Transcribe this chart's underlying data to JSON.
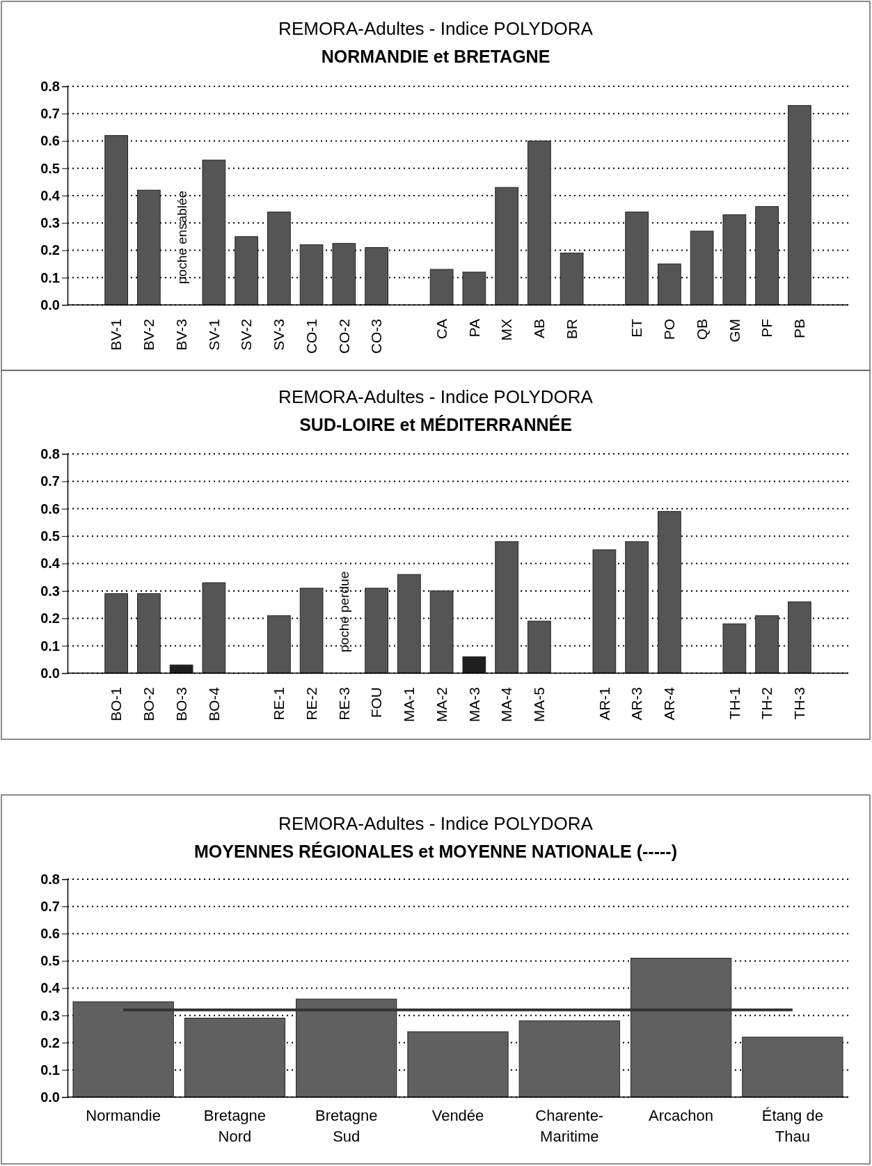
{
  "chart_data": [
    {
      "type": "bar",
      "title": "REMORA-Adultes - Indice POLYDORA",
      "subtitle": "NORMANDIE et BRETAGNE",
      "categories": [
        null,
        "BV-1",
        "BV-2",
        "BV-3",
        "SV-1",
        "SV-2",
        "SV-3",
        "CO-1",
        "CO-2",
        "CO-3",
        null,
        "CA",
        "PA",
        "MX",
        "AB",
        "BR",
        null,
        "ET",
        "PO",
        "QB",
        "GM",
        "PF",
        "PB",
        null
      ],
      "values": [
        null,
        0.62,
        0.42,
        null,
        0.53,
        0.25,
        0.34,
        0.22,
        0.225,
        0.21,
        null,
        0.13,
        0.12,
        0.43,
        0.6,
        0.19,
        null,
        0.34,
        0.15,
        0.27,
        0.33,
        0.36,
        0.73,
        null
      ],
      "colors": [
        null,
        "#555555",
        "#555555",
        null,
        "#555555",
        "#555555",
        "#555555",
        "#555555",
        "#555555",
        "#555555",
        null,
        "#555555",
        "#555555",
        "#555555",
        "#555555",
        "#555555",
        null,
        "#555555",
        "#555555",
        "#555555",
        "#555555",
        "#555555",
        "#555555",
        null
      ],
      "ylim": [
        0,
        0.8
      ],
      "yticks": [
        {
          "value": 0,
          "label": "0.0"
        },
        {
          "value": 0.1,
          "label": "0.1"
        },
        {
          "value": 0.2,
          "label": "0.2"
        },
        {
          "value": 0.3,
          "label": "0.3"
        },
        {
          "value": 0.4,
          "label": "0.4"
        },
        {
          "value": 0.5,
          "label": "0.5"
        },
        {
          "value": 0.6,
          "label": "0.6"
        },
        {
          "value": 0.7,
          "label": "0.7"
        },
        {
          "value": 0.8,
          "label": "0.8"
        }
      ],
      "grid": "y",
      "annotations": [
        "poche ensablée"
      ]
    },
    {
      "type": "bar",
      "title": "REMORA-Adultes - Indice POLYDORA",
      "subtitle": "SUD-LOIRE et MÉDITERRANNÉE",
      "categories": [
        null,
        "BO-1",
        "BO-2",
        "BO-3",
        "BO-4",
        null,
        "RE-1",
        "RE-2",
        "RE-3",
        "FOU",
        "MA-1",
        "MA-2",
        "MA-3",
        "MA-4",
        "MA-5",
        null,
        "AR-1",
        "AR-3",
        "AR-4",
        null,
        "TH-1",
        "TH-2",
        "TH-3",
        null
      ],
      "values": [
        null,
        0.29,
        0.29,
        0.03,
        0.33,
        null,
        0.21,
        0.31,
        null,
        0.31,
        0.36,
        0.3,
        0.06,
        0.48,
        0.19,
        null,
        0.45,
        0.48,
        0.59,
        null,
        0.18,
        0.21,
        0.26,
        null
      ],
      "colors": [
        null,
        "#555555",
        "#555555",
        "#1e1e1e",
        "#555555",
        null,
        "#555555",
        "#555555",
        null,
        "#555555",
        "#555555",
        "#555555",
        "#1e1e1e",
        "#555555",
        "#555555",
        null,
        "#555555",
        "#555555",
        "#555555",
        null,
        "#555555",
        "#555555",
        "#555555",
        null
      ],
      "ylim": [
        0,
        0.8
      ],
      "yticks": [
        {
          "value": 0,
          "label": "0.0"
        },
        {
          "value": 0.1,
          "label": "0.1"
        },
        {
          "value": 0.2,
          "label": "0.2"
        },
        {
          "value": 0.3,
          "label": "0.3"
        },
        {
          "value": 0.4,
          "label": "0.4"
        },
        {
          "value": 0.5,
          "label": "0.5"
        },
        {
          "value": 0.6,
          "label": "0.6"
        },
        {
          "value": 0.7,
          "label": "0.7"
        },
        {
          "value": 0.8,
          "label": "0.8"
        }
      ],
      "grid": "y",
      "annotations": [
        "poche perdue"
      ]
    },
    {
      "type": "bar",
      "title": "REMORA-Adultes - Indice POLYDORA",
      "subtitle": "MOYENNES RÉGIONALES et MOYENNE NATIONALE (-----)",
      "categories": [
        "Normandie",
        "Bretagne Nord",
        "Bretagne Sud",
        "Vendée",
        "Charente-Maritime",
        "Arcachon",
        "Étang de Thau"
      ],
      "values": [
        0.35,
        0.29,
        0.36,
        0.24,
        0.28,
        0.51,
        0.22
      ],
      "colors": [
        "#606060",
        "#606060",
        "#606060",
        "#606060",
        "#606060",
        "#606060",
        "#606060"
      ],
      "ylim": [
        0,
        0.8
      ],
      "yticks": [
        {
          "value": 0,
          "label": "0.0"
        },
        {
          "value": 0.1,
          "label": "0.1"
        },
        {
          "value": 0.2,
          "label": "0.2"
        },
        {
          "value": 0.3,
          "label": "0.3"
        },
        {
          "value": 0.4,
          "label": "0.4"
        },
        {
          "value": 0.5,
          "label": "0.5"
        },
        {
          "value": 0.6,
          "label": "0.6"
        },
        {
          "value": 0.7,
          "label": "0.7"
        },
        {
          "value": 0.8,
          "label": "0.8"
        }
      ],
      "grid": "y",
      "ref_lines": [
        {
          "axis": "y",
          "value": 0.32,
          "color": "#333333"
        }
      ]
    }
  ]
}
